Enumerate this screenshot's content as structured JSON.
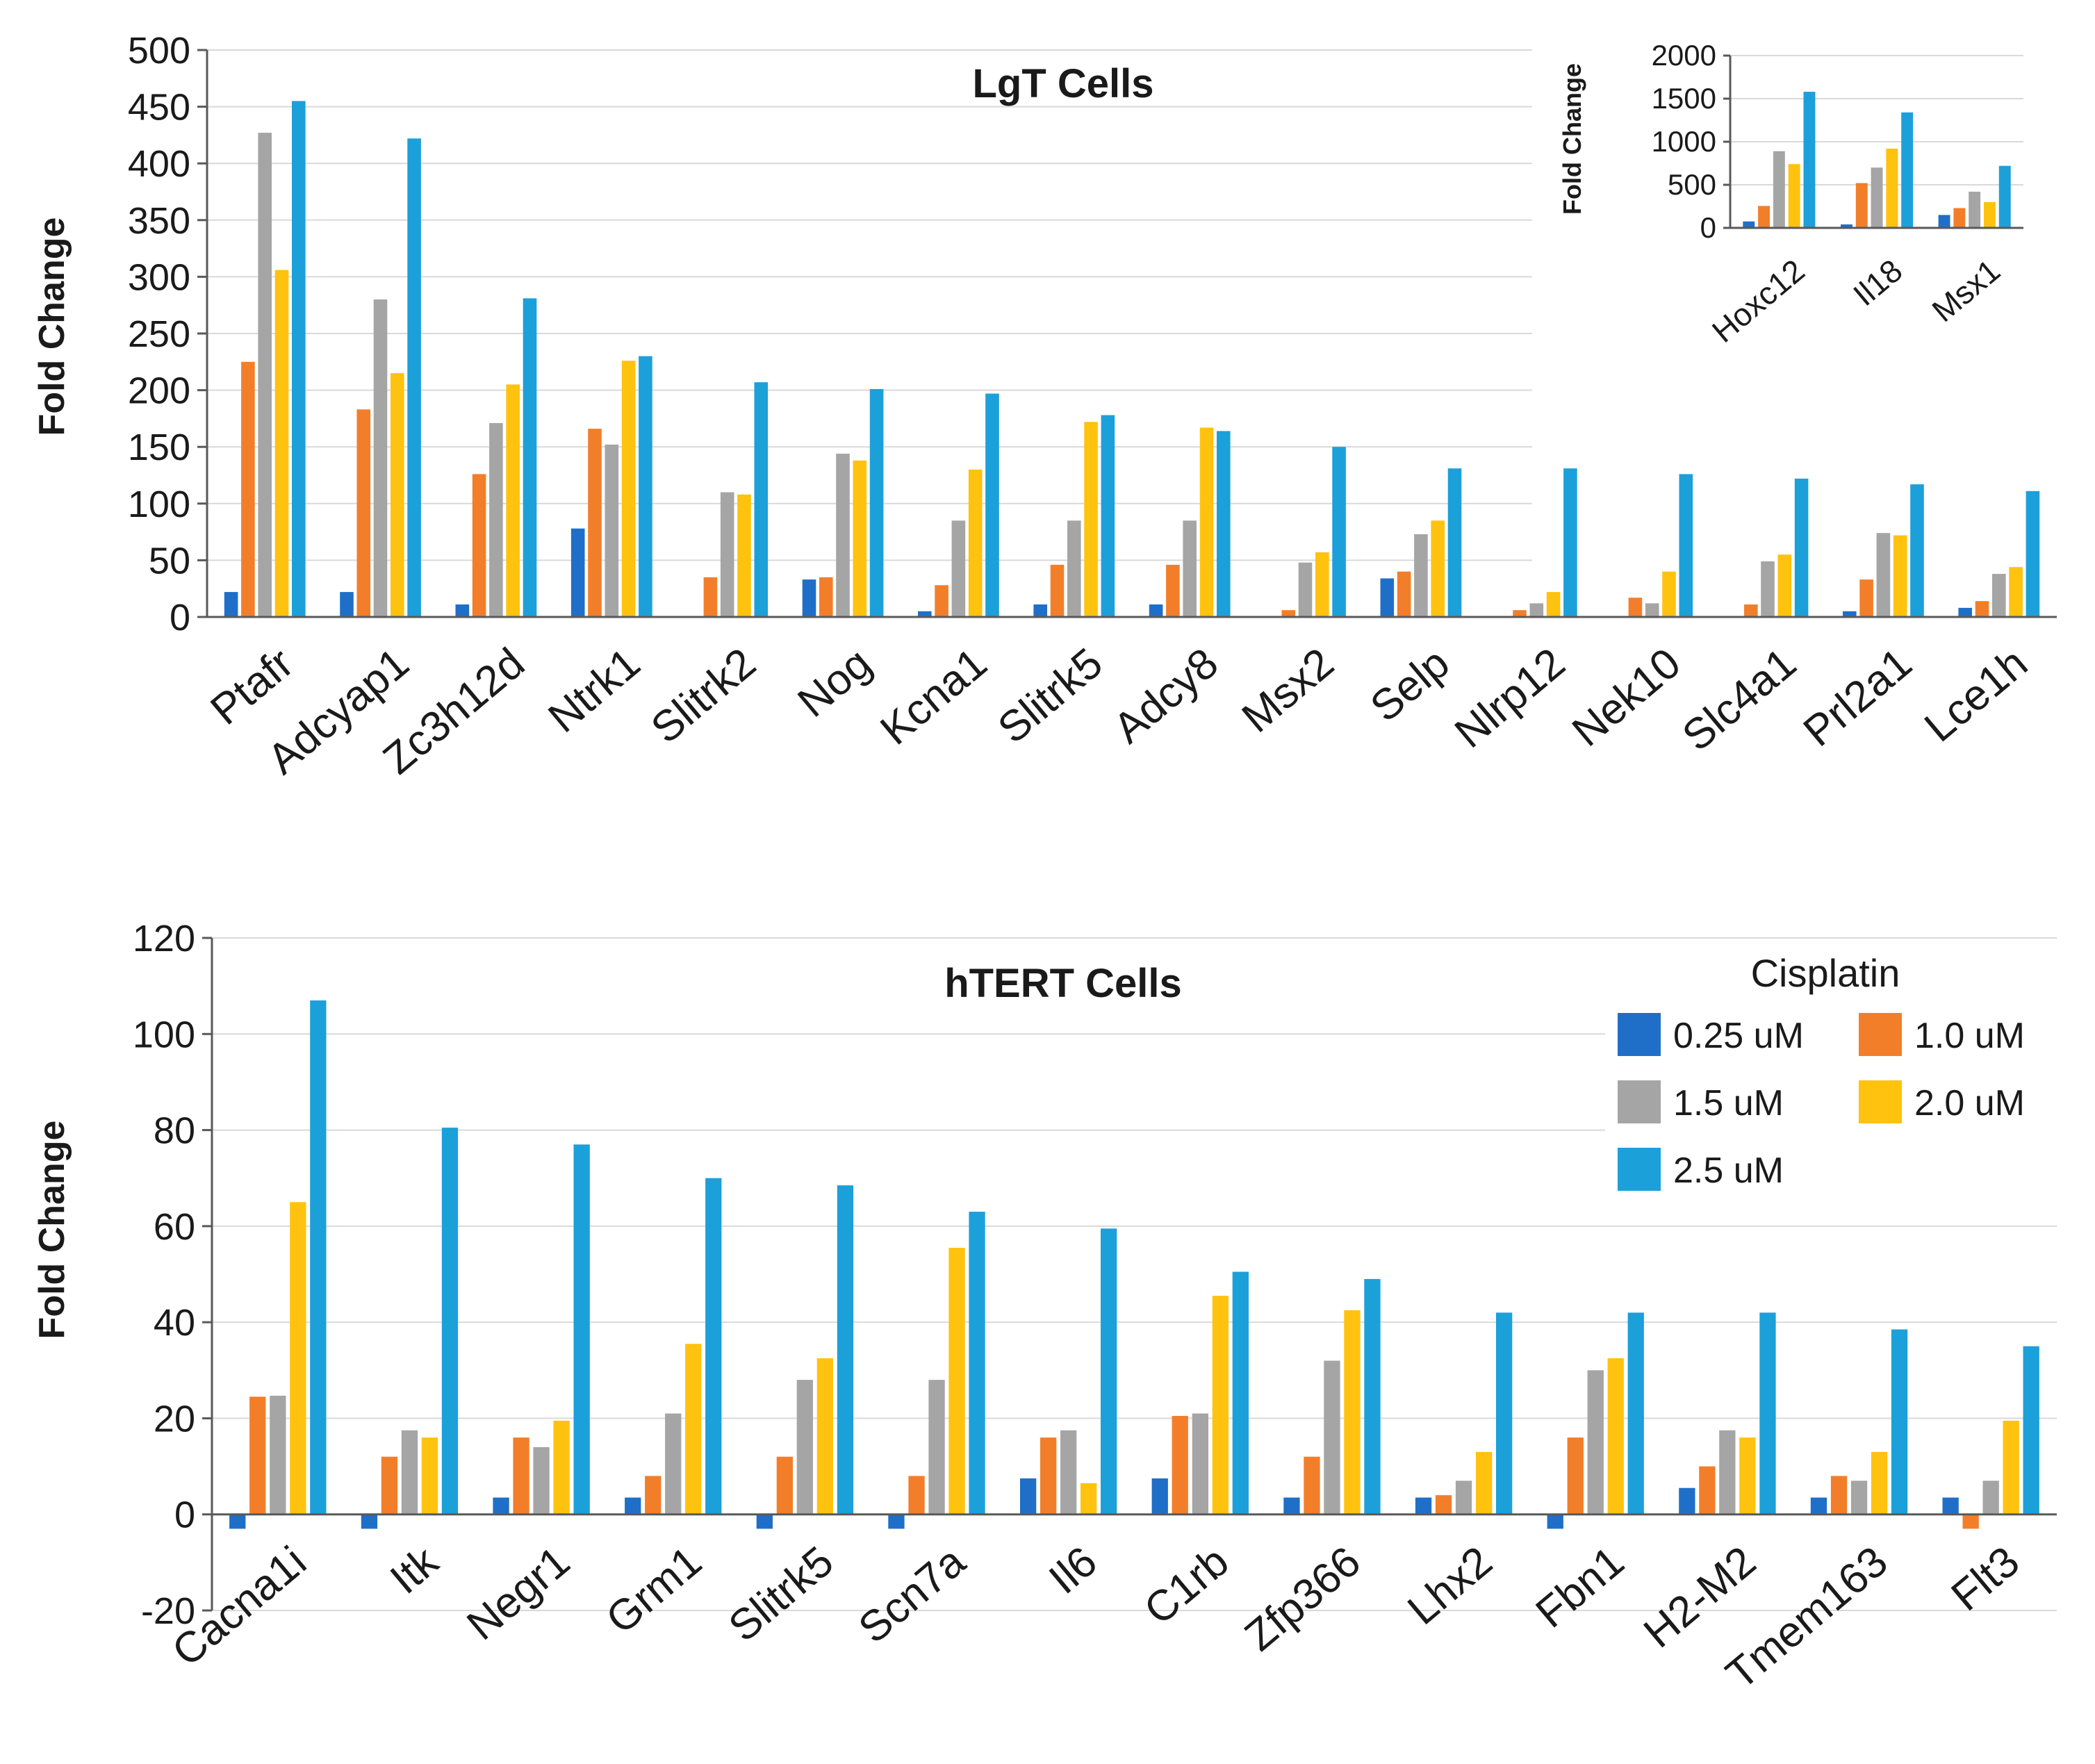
{
  "colors": {
    "s0": "#1F6FC8",
    "s1": "#F37E2A",
    "s2": "#A5A5A5",
    "s3": "#FFC20E",
    "s4": "#1CA0DA"
  },
  "legend": {
    "title": "Cisplatin",
    "labels": [
      "0.25 uM",
      "1.0 uM",
      "1.5 uM",
      "2.0 uM",
      "2.5 uM"
    ]
  },
  "chart_data": [
    {
      "type": "bar",
      "title": "LgT Cells",
      "xlabel": "",
      "ylabel": "Fold Change",
      "ylim": [
        0,
        500
      ],
      "yticks": [
        "0",
        "50",
        "100",
        "150",
        "200",
        "250",
        "300",
        "350",
        "400",
        "450",
        "500"
      ],
      "categories": [
        "Ptafr",
        "Adcyap1",
        "Zc3h12d",
        "Ntrk1",
        "Slitrk2",
        "Nog",
        "Kcna1",
        "Slitrk5",
        "Adcy8",
        "Msx2",
        "Selp",
        "Nlrp12",
        "Nek10",
        "Slc4a1",
        "Prl2a1",
        "Lce1h"
      ],
      "series": [
        {
          "name": "0.25 uM",
          "values": [
            22,
            22,
            11,
            78,
            0,
            33,
            5,
            11,
            11,
            0,
            34,
            0,
            0,
            0,
            5,
            8
          ]
        },
        {
          "name": "1.0 uM",
          "values": [
            225,
            183,
            126,
            166,
            35,
            35,
            28,
            46,
            46,
            6,
            40,
            6,
            17,
            11,
            33,
            14
          ]
        },
        {
          "name": "1.5 uM",
          "values": [
            427,
            280,
            171,
            152,
            110,
            144,
            85,
            85,
            85,
            48,
            73,
            12,
            12,
            49,
            74,
            38
          ]
        },
        {
          "name": "2.0 uM",
          "values": [
            306,
            215,
            205,
            226,
            108,
            138,
            130,
            172,
            167,
            57,
            85,
            22,
            40,
            55,
            72,
            44
          ]
        },
        {
          "name": "2.5 uM",
          "values": [
            455,
            422,
            281,
            230,
            207,
            201,
            197,
            178,
            164,
            150,
            131,
            131,
            126,
            122,
            117,
            111
          ]
        }
      ]
    },
    {
      "type": "bar",
      "title": "",
      "xlabel": "",
      "ylabel": "Fold Change",
      "ylim": [
        0,
        2000
      ],
      "yticks": [
        "0",
        "500",
        "1000",
        "1500",
        "2000"
      ],
      "categories": [
        "Hoxc12",
        "Il18",
        "Msx1"
      ],
      "series": [
        {
          "name": "0.25 uM",
          "values": [
            75,
            40,
            150
          ]
        },
        {
          "name": "1.0 uM",
          "values": [
            255,
            520,
            230
          ]
        },
        {
          "name": "1.5 uM",
          "values": [
            890,
            700,
            420
          ]
        },
        {
          "name": "2.0 uM",
          "values": [
            740,
            920,
            300
          ]
        },
        {
          "name": "2.5 uM",
          "values": [
            1580,
            1340,
            720
          ]
        }
      ]
    },
    {
      "type": "bar",
      "title": "hTERT Cells",
      "xlabel": "",
      "ylabel": "Fold Change",
      "ylim": [
        -20,
        120
      ],
      "yticks": [
        "-20",
        "0",
        "20",
        "40",
        "60",
        "80",
        "100",
        "120"
      ],
      "categories": [
        "Cacna1i",
        "Itk",
        "Negr1",
        "Grm1",
        "Slitrk5",
        "Scn7a",
        "Il6",
        "C1rb",
        "Zfp366",
        "Lhx2",
        "Fbn1",
        "H2-M2",
        "Tmem163",
        "Flt3"
      ],
      "series": [
        {
          "name": "0.25 uM",
          "values": [
            -3,
            -3,
            3.5,
            3.5,
            -3,
            -3,
            7.5,
            7.5,
            3.5,
            3.5,
            -3,
            5.5,
            3.5,
            3.5
          ]
        },
        {
          "name": "1.0 uM",
          "values": [
            24.5,
            12,
            16,
            8,
            12,
            8,
            16,
            20.5,
            12,
            4,
            16,
            10,
            8,
            -3
          ]
        },
        {
          "name": "1.5 uM",
          "values": [
            24.7,
            17.5,
            14,
            21,
            28,
            28,
            17.5,
            21,
            32,
            7,
            30,
            17.5,
            7,
            7
          ]
        },
        {
          "name": "2.0 uM",
          "values": [
            65,
            16,
            19.5,
            35.5,
            32.5,
            55.5,
            6.5,
            45.5,
            42.5,
            13,
            32.5,
            16,
            13,
            19.5
          ]
        },
        {
          "name": "2.5 uM",
          "values": [
            107,
            80.5,
            77,
            70,
            68.5,
            63,
            59.5,
            50.5,
            49,
            42,
            42,
            42,
            38.5,
            35
          ]
        }
      ]
    }
  ]
}
